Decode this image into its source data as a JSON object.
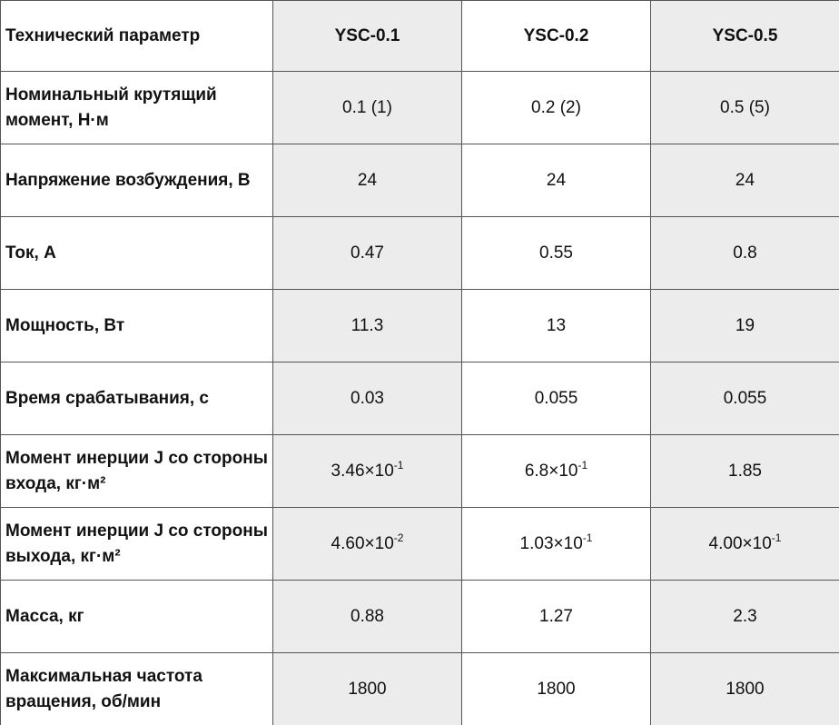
{
  "table": {
    "header": [
      "Технический параметр",
      "YSC-0.1",
      "YSC-0.2",
      "YSC-0.5"
    ],
    "rows": [
      [
        "Номинальный крутящий момент, Н·м",
        "0.1 (1)",
        "0.2 (2)",
        "0.5 (5)"
      ],
      [
        "Напряжение возбуждения, В",
        "24",
        "24",
        "24"
      ],
      [
        "Ток, А",
        "0.47",
        "0.55",
        "0.8"
      ],
      [
        "Мощность, Вт",
        "11.3",
        "13",
        "19"
      ],
      [
        "Время срабатывания, с",
        "0.03",
        "0.055",
        "0.055"
      ],
      [
        "Момент инерции J со стороны входа, кг·м²",
        {
          "base": "3.46×10",
          "exp": "-1"
        },
        {
          "base": "6.8×10",
          "exp": "-1"
        },
        "1.85"
      ],
      [
        "Момент инерции J со стороны выхода, кг·м²",
        {
          "base": "4.60×10",
          "exp": "-2"
        },
        {
          "base": "1.03×10",
          "exp": "-1"
        },
        {
          "base": "4.00×10",
          "exp": "-1"
        }
      ],
      [
        "Масса, кг",
        "0.88",
        "1.27",
        "2.3"
      ],
      [
        "Максимальная частота вращения, об/мин",
        "1800",
        "1800",
        "1800"
      ]
    ]
  }
}
